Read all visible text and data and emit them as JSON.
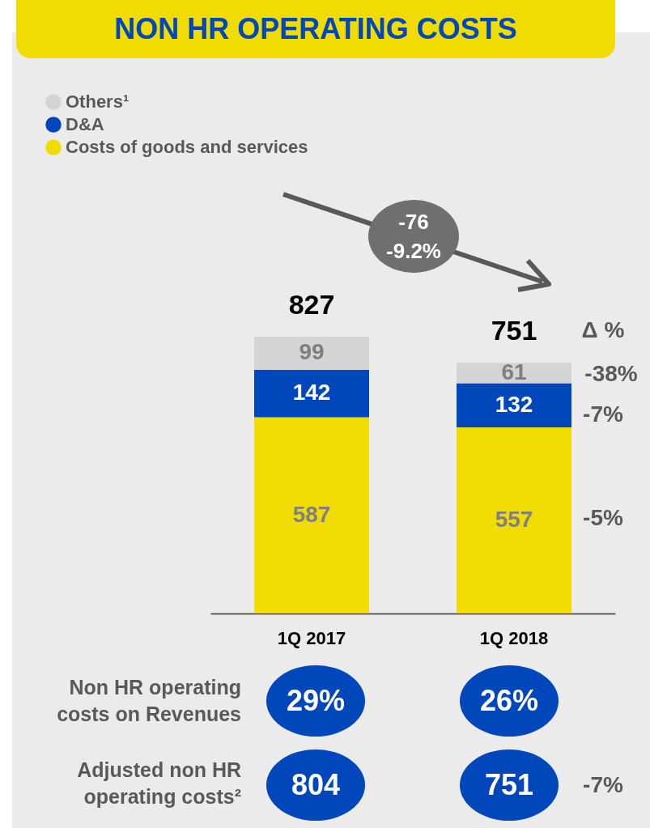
{
  "chart_data": {
    "type": "bar",
    "title": "NON HR OPERATING COSTS",
    "categories": [
      "1Q 2017",
      "1Q 2018"
    ],
    "stacked": true,
    "series": [
      {
        "name": "Costs of goods and services",
        "color": "#f0dc00",
        "values": [
          587,
          557
        ]
      },
      {
        "name": "D&A",
        "color": "#0047bb",
        "values": [
          142,
          132
        ]
      },
      {
        "name": "Others¹",
        "color": "#d4d4d4",
        "values": [
          99,
          61
        ]
      }
    ],
    "data_labels": true,
    "totals": [
      "827",
      "751"
    ],
    "legend": "top left",
    "annotations": [
      "-76",
      "-9.2%",
      "Δ %",
      "-38%",
      "-7%",
      "-5%",
      "Non HR operating costs on Revenues",
      "29%",
      "26%",
      "Adjusted non HR operating costs²",
      "804",
      "751",
      "-7%"
    ]
  }
}
